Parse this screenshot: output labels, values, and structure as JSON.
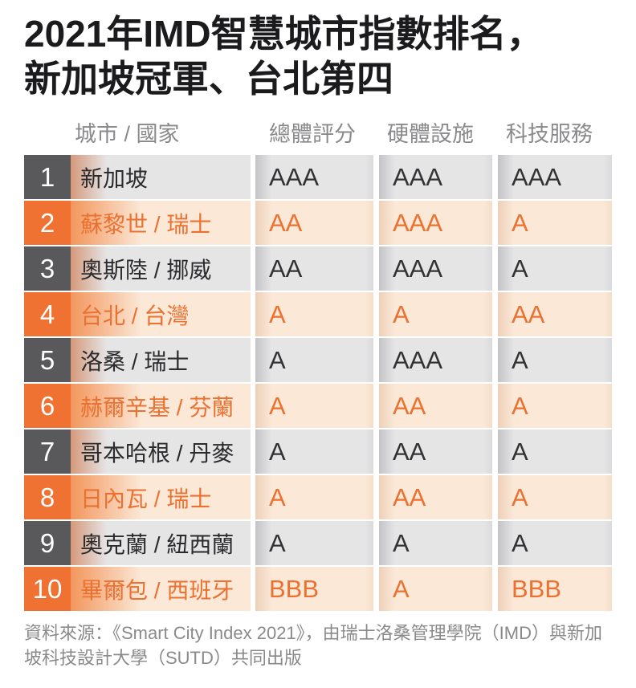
{
  "title": {
    "line1": "2021年IMD智慧城市指數排名，",
    "line2": "新加坡冠軍、台北第四"
  },
  "table": {
    "columns": [
      "城市 / 國家",
      "總體評分",
      "硬體設施",
      "科技服務"
    ],
    "rows": [
      {
        "rank": "1",
        "city": "新加坡",
        "overall": "AAA",
        "hardware": "AAA",
        "tech": "AAA",
        "highlight": false
      },
      {
        "rank": "2",
        "city": "蘇黎世 / 瑞士",
        "overall": "AA",
        "hardware": "AAA",
        "tech": "A",
        "highlight": true
      },
      {
        "rank": "3",
        "city": "奧斯陸 / 挪威",
        "overall": "AA",
        "hardware": "AAA",
        "tech": "A",
        "highlight": false
      },
      {
        "rank": "4",
        "city": "台北 / 台灣",
        "overall": "A",
        "hardware": "A",
        "tech": "AA",
        "highlight": true
      },
      {
        "rank": "5",
        "city": "洛桑 / 瑞士",
        "overall": "A",
        "hardware": "AAA",
        "tech": "A",
        "highlight": false
      },
      {
        "rank": "6",
        "city": "赫爾辛基 / 芬蘭",
        "overall": "A",
        "hardware": "AA",
        "tech": "A",
        "highlight": true
      },
      {
        "rank": "7",
        "city": "哥本哈根 / 丹麥",
        "overall": "A",
        "hardware": "AA",
        "tech": "A",
        "highlight": false
      },
      {
        "rank": "8",
        "city": "日內瓦 / 瑞士",
        "overall": "A",
        "hardware": "AA",
        "tech": "A",
        "highlight": true
      },
      {
        "rank": "9",
        "city": "奧克蘭 / 紐西蘭",
        "overall": "A",
        "hardware": "A",
        "tech": "A",
        "highlight": false
      },
      {
        "rank": "10",
        "city": "畢爾包 / 西班牙",
        "overall": "BBB",
        "hardware": "A",
        "tech": "BBB",
        "highlight": true
      }
    ]
  },
  "footer": {
    "source": "資料來源：《Smart City Index 2021》，由瑞士洛桑管理學院（IMD）與新加坡科技設計大學（SUTD）共同出版"
  },
  "colors": {
    "accent_orange": "#ef7232",
    "orange_text": "#eb7130",
    "dark_rank_bg": "#59595b",
    "gray_row_bg": "#e5e5e6",
    "peach_row_bg": "#fbe8d7",
    "header_gray": "#8a8a8c",
    "title_black": "#1b1b1d"
  },
  "chart_data": {
    "type": "table",
    "title": "2021年IMD智慧城市指數排名，新加坡冠軍、台北第四",
    "columns": [
      "城市 / 國家",
      "總體評分",
      "硬體設施",
      "科技服務"
    ],
    "categories": [
      "新加坡",
      "蘇黎世 / 瑞士",
      "奧斯陸 / 挪威",
      "台北 / 台灣",
      "洛桑 / 瑞士",
      "赫爾辛基 / 芬蘭",
      "哥本哈根 / 丹麥",
      "日內瓦 / 瑞士",
      "奧克蘭 / 紐西蘭",
      "畢爾包 / 西班牙"
    ],
    "series": [
      {
        "name": "總體評分",
        "values": [
          "AAA",
          "AA",
          "AA",
          "A",
          "A",
          "A",
          "A",
          "A",
          "A",
          "BBB"
        ]
      },
      {
        "name": "硬體設施",
        "values": [
          "AAA",
          "AAA",
          "AAA",
          "A",
          "AAA",
          "AA",
          "AA",
          "AA",
          "A",
          "A"
        ]
      },
      {
        "name": "科技服務",
        "values": [
          "AAA",
          "A",
          "A",
          "AA",
          "A",
          "A",
          "A",
          "A",
          "A",
          "BBB"
        ]
      }
    ],
    "ranks": [
      1,
      2,
      3,
      4,
      5,
      6,
      7,
      8,
      9,
      10
    ],
    "source": "《Smart City Index 2021》，由瑞士洛桑管理學院（IMD）與新加坡科技設計大學（SUTD）共同出版"
  }
}
